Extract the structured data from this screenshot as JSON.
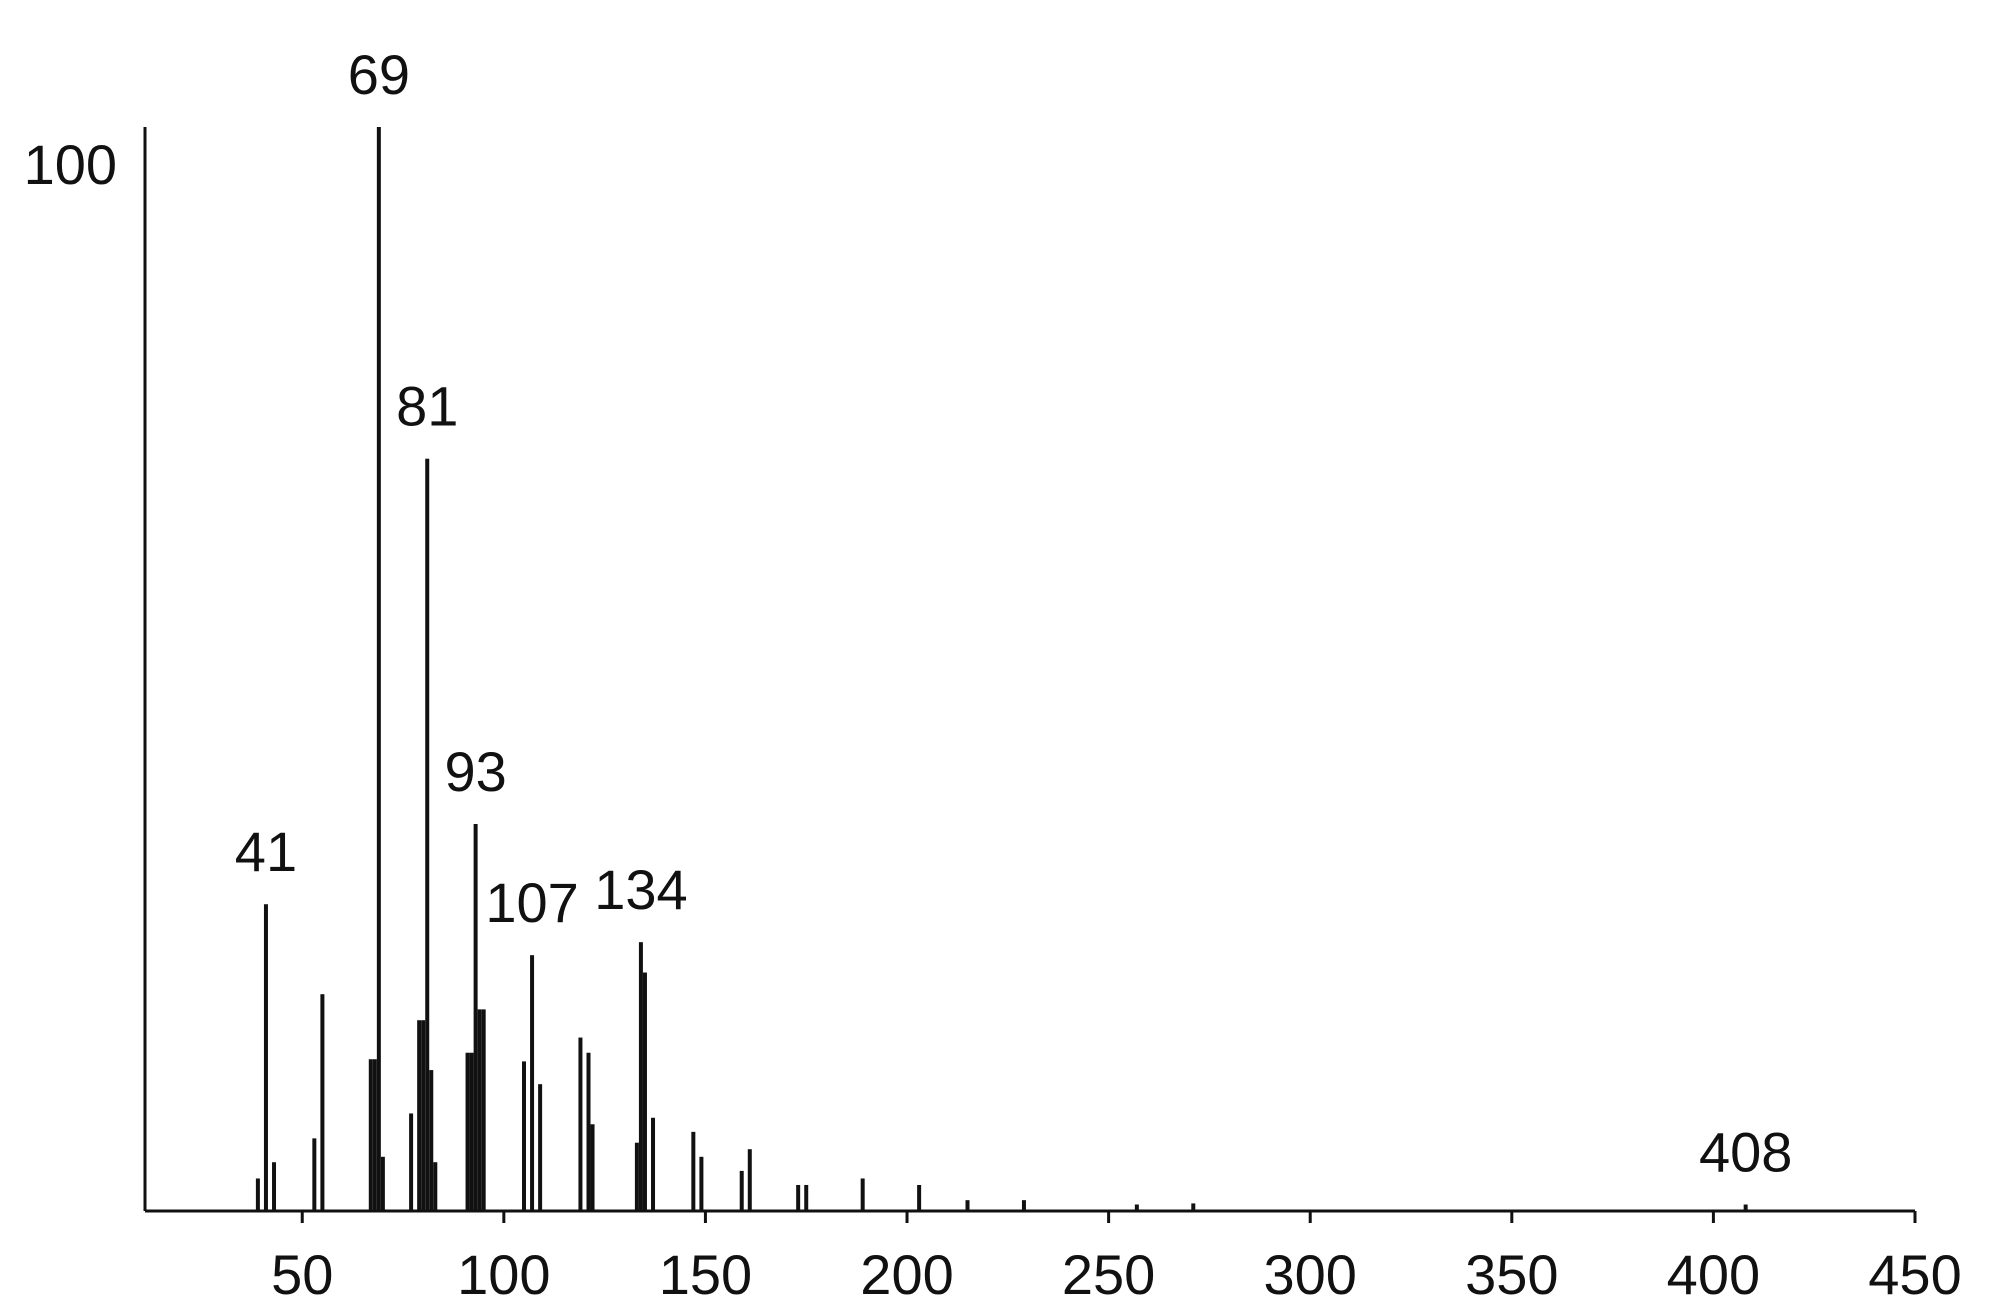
{
  "chart_data": {
    "type": "spectrum",
    "color": "#111111",
    "x": [
      39,
      41,
      43,
      53,
      55,
      67,
      68,
      69,
      70,
      77,
      79,
      80,
      81,
      82,
      83,
      91,
      92,
      93,
      94,
      95,
      105,
      107,
      109,
      119,
      121,
      122,
      133,
      134,
      135,
      137,
      147,
      149,
      159,
      161,
      173,
      175,
      189,
      203,
      215,
      229,
      257,
      271,
      408
    ],
    "values": [
      3,
      28.3,
      4.5,
      6.7,
      20,
      14,
      14,
      100,
      5,
      9,
      17.6,
      17.6,
      69.4,
      13,
      4.5,
      14.6,
      14.6,
      35.7,
      18.6,
      18.6,
      13.8,
      23.6,
      11.7,
      16,
      14.6,
      8,
      6.3,
      24.8,
      22,
      8.6,
      7.3,
      5,
      3.7,
      5.7,
      2.4,
      2.4,
      3,
      2.4,
      1,
      1,
      0.6,
      0.7,
      0.6
    ],
    "annotations": [
      "41",
      "69",
      "81",
      "93",
      "107",
      "134",
      "408"
    ],
    "xlim": [
      11,
      450
    ],
    "xticks": [
      50,
      100,
      150,
      200,
      250,
      300,
      350,
      400,
      450
    ],
    "ylim": [
      0,
      100
    ],
    "yticks": [
      100
    ]
  }
}
